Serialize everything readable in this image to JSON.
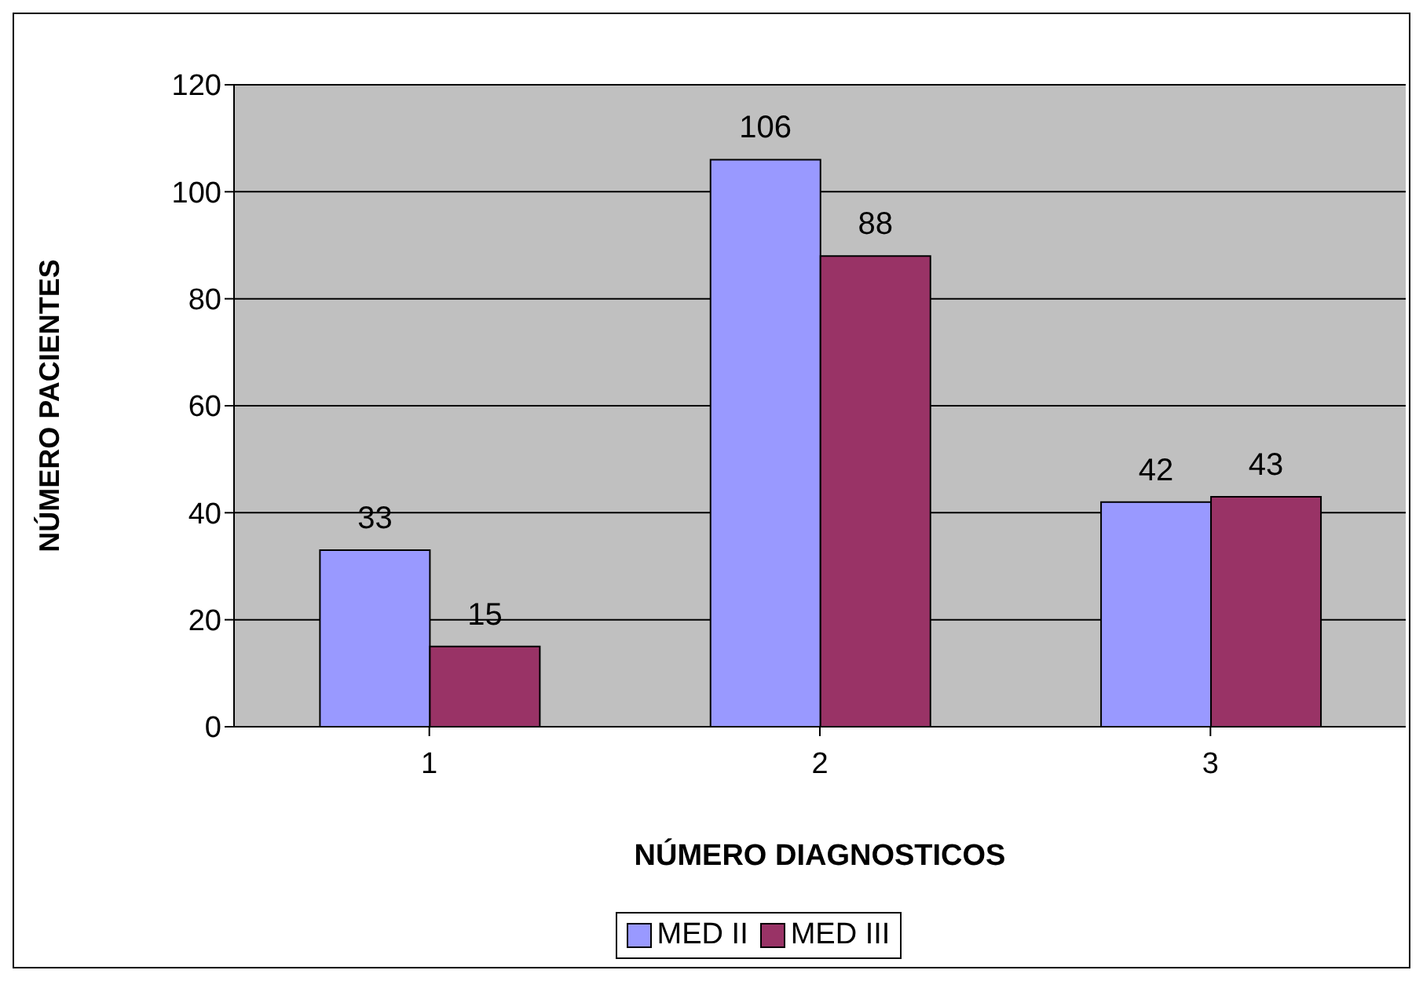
{
  "chart_data": {
    "type": "bar",
    "xlabel": "NÚMERO DIAGNOSTICOS",
    "ylabel": "NÚMERO PACIENTES",
    "categories": [
      "1",
      "2",
      "3"
    ],
    "series": [
      {
        "name": "MED II",
        "color": "#9999ff",
        "values": [
          33,
          106,
          42
        ]
      },
      {
        "name": "MED III",
        "color": "#993366",
        "values": [
          15,
          88,
          43
        ]
      }
    ],
    "ylim": [
      0,
      120
    ],
    "yticks": [
      0,
      20,
      40,
      60,
      80,
      100,
      120
    ],
    "grid": "y",
    "legend": "bottom",
    "data_labels": true
  }
}
